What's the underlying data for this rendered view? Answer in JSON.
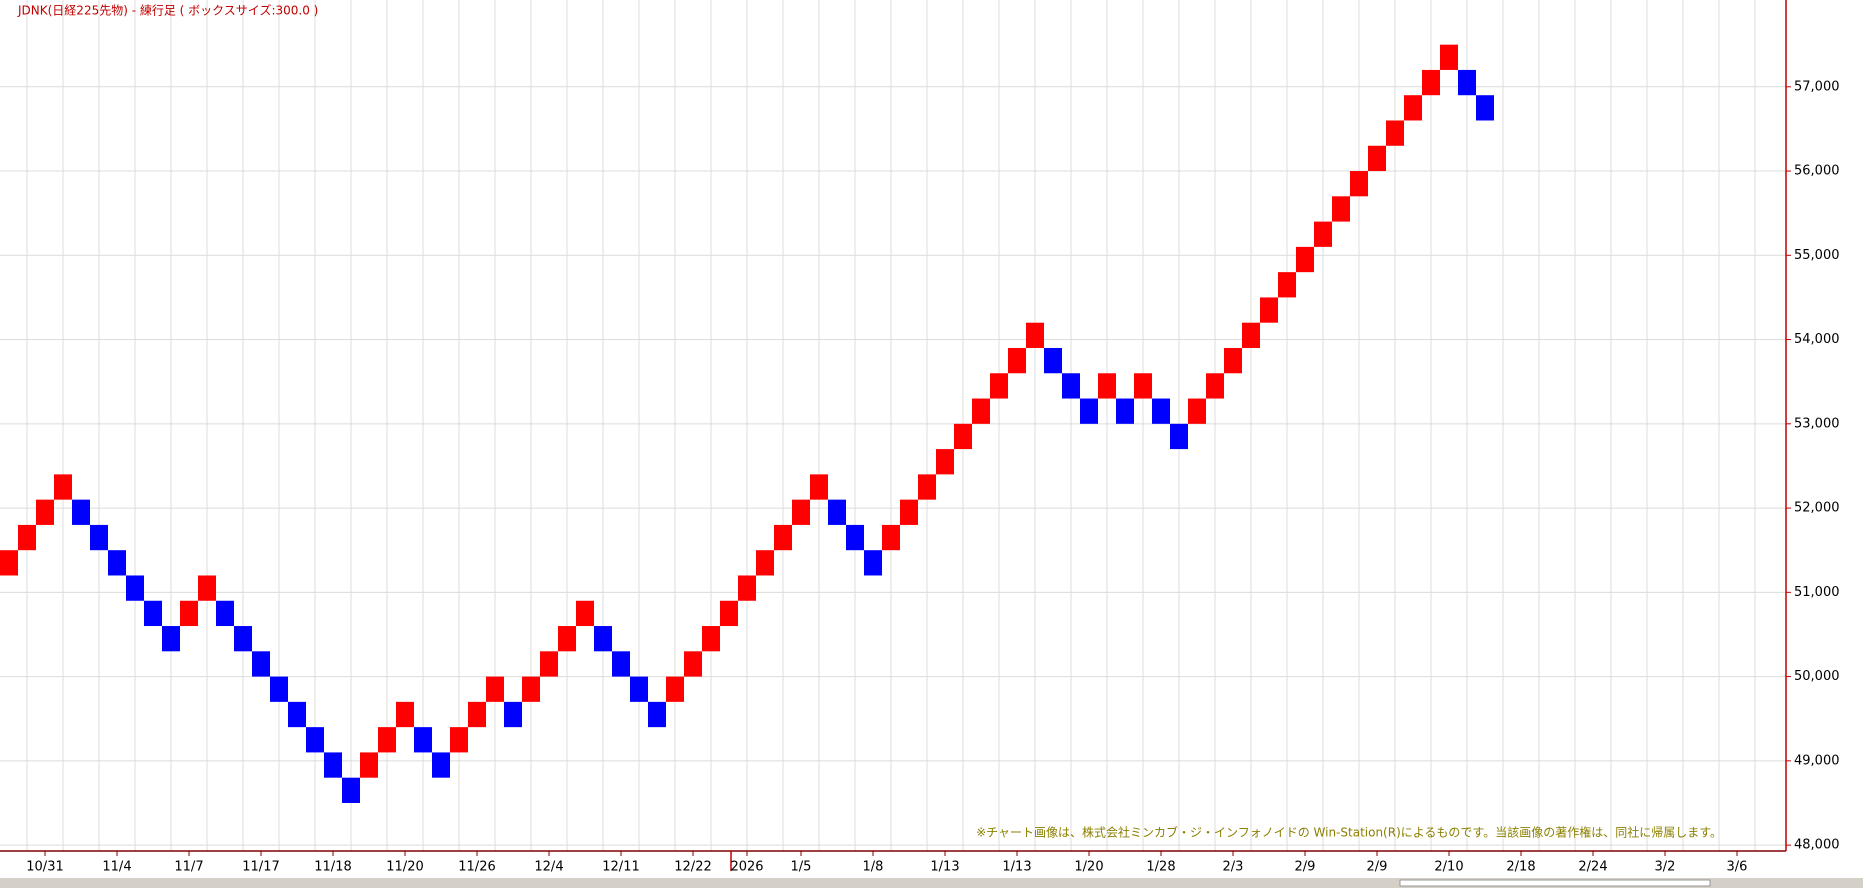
{
  "chart_data": {
    "type": "renko",
    "title": "JDNK(日経225先物) - 練行足 ( ボックスサイズ:300.0 )",
    "note": "※チャート画像は、株式会社ミンカブ・ジ・インフォノイドの Win-Station(R)によるものです。当該画像の著作権は、同社に帰属します。",
    "categories": [
      null,
      null,
      "10/31",
      null,
      null,
      null,
      "11/4",
      null,
      null,
      null,
      "11/7",
      null,
      null,
      null,
      "11/17",
      null,
      null,
      null,
      "11/18",
      null,
      null,
      null,
      "11/20",
      null,
      null,
      null,
      "11/26",
      null,
      null,
      null,
      "12/4",
      null,
      null,
      null,
      "12/11",
      null,
      null,
      null,
      "12/22",
      null,
      null,
      "2026",
      null,
      null,
      "1/5",
      null,
      null,
      null,
      "1/8",
      null,
      null,
      null,
      "1/13",
      null,
      null,
      null,
      "1/13",
      null,
      null,
      null,
      "1/20",
      null,
      null,
      null,
      "1/28",
      null,
      null,
      null,
      "2/3",
      null,
      null,
      null,
      "2/9",
      null,
      null,
      null,
      "2/9",
      null,
      null,
      null,
      "2/10",
      null,
      null,
      null,
      "2/18",
      null,
      null,
      null,
      "2/24",
      null,
      null,
      null,
      "3/2",
      null,
      null,
      null,
      "3/6",
      null,
      null
    ],
    "bricks": {
      "low": [
        51200,
        51500,
        51800,
        52100,
        51800,
        51500,
        51200,
        50900,
        50600,
        50300,
        50600,
        50900,
        50600,
        50300,
        50000,
        49700,
        49400,
        49100,
        48800,
        48500,
        48800,
        49100,
        49400,
        49100,
        48800,
        49100,
        49400,
        49700,
        49400,
        49700,
        50000,
        50300,
        50600,
        50300,
        50000,
        49700,
        49400,
        49700,
        50000,
        50300,
        50600,
        50900,
        51200,
        51500,
        51800,
        52100,
        51800,
        51500,
        51200,
        51500,
        51800,
        52100,
        52400,
        52700,
        53000,
        53300,
        53600,
        53900,
        53600,
        53300,
        53000,
        53300,
        53000,
        53300,
        53000,
        52700,
        53000,
        53300,
        53600,
        53900,
        54200,
        54500,
        54800,
        55100,
        55400,
        55700,
        56000,
        56300,
        56600,
        56900,
        57200,
        56900,
        56600
      ],
      "high": [
        51500,
        51800,
        52100,
        52400,
        52100,
        51800,
        51500,
        51200,
        50900,
        50600,
        50900,
        51200,
        50900,
        50600,
        50300,
        50000,
        49700,
        49400,
        49100,
        48800,
        49100,
        49400,
        49700,
        49400,
        49100,
        49400,
        49700,
        50000,
        49700,
        50000,
        50300,
        50600,
        50900,
        50600,
        50300,
        50000,
        49700,
        50000,
        50300,
        50600,
        50900,
        51200,
        51500,
        51800,
        52100,
        52400,
        52100,
        51800,
        51500,
        51800,
        52100,
        52400,
        52700,
        53000,
        53300,
        53600,
        53900,
        54200,
        53900,
        53600,
        53300,
        53600,
        53300,
        53600,
        53300,
        53000,
        53300,
        53600,
        53900,
        54200,
        54500,
        54800,
        55100,
        55400,
        55700,
        56000,
        56300,
        56600,
        56900,
        57200,
        57500,
        57200,
        56900
      ],
      "direction": [
        "up",
        "up",
        "up",
        "up",
        "down",
        "down",
        "down",
        "down",
        "down",
        "down",
        "up",
        "up",
        "down",
        "down",
        "down",
        "down",
        "down",
        "down",
        "down",
        "down",
        "up",
        "up",
        "up",
        "down",
        "down",
        "up",
        "up",
        "up",
        "down",
        "up",
        "up",
        "up",
        "up",
        "down",
        "down",
        "down",
        "down",
        "up",
        "up",
        "up",
        "up",
        "up",
        "up",
        "up",
        "up",
        "up",
        "down",
        "down",
        "down",
        "up",
        "up",
        "up",
        "up",
        "up",
        "up",
        "up",
        "up",
        "up",
        "down",
        "down",
        "down",
        "up",
        "down",
        "up",
        "down",
        "down",
        "up",
        "up",
        "up",
        "up",
        "up",
        "up",
        "up",
        "up",
        "up",
        "up",
        "up",
        "up",
        "up",
        "up",
        "up",
        "down",
        "down"
      ]
    },
    "up_color": "#ff0000",
    "down_color": "#0000ff",
    "ylim": [
      47930,
      58030
    ],
    "yticks": [
      {
        "value": 48000,
        "label": "48,000"
      },
      {
        "value": 49000,
        "label": "49,000"
      },
      {
        "value": 50000,
        "label": "50,000"
      },
      {
        "value": 51000,
        "label": "51,000"
      },
      {
        "value": 52000,
        "label": "52,000"
      },
      {
        "value": 53000,
        "label": "53,000"
      },
      {
        "value": 54000,
        "label": "54,000"
      },
      {
        "value": 55000,
        "label": "55,000"
      },
      {
        "value": 56000,
        "label": "56,000"
      },
      {
        "value": 57000,
        "label": "57,000"
      }
    ],
    "grid": true
  }
}
